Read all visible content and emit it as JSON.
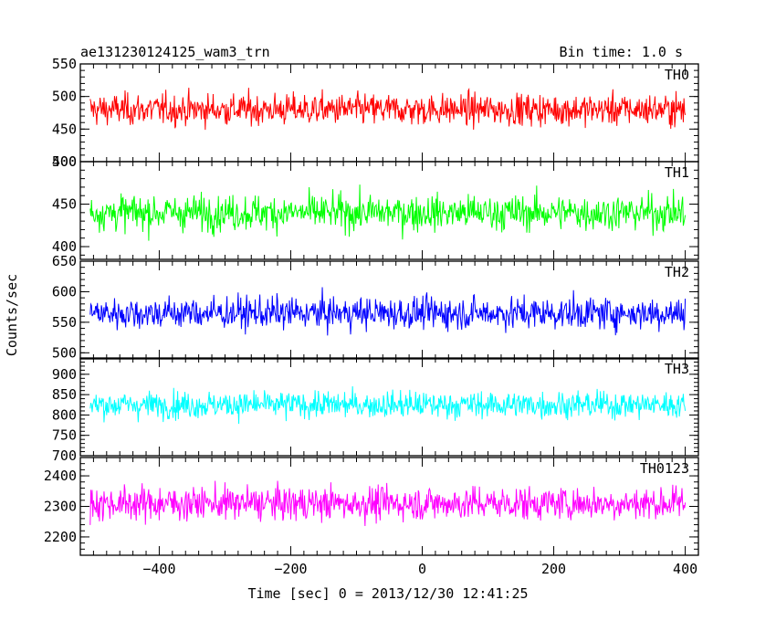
{
  "header": {
    "title": "ae131230124125_wam3_trn",
    "bin_time": "Bin time: 1.0 s"
  },
  "axes": {
    "xlabel": "Time [sec] 0 = 2013/12/30 12:41:25",
    "ylabel": "Counts/sec",
    "xlim": [
      -520,
      420
    ],
    "xticks": [
      -400,
      -200,
      0,
      200,
      400
    ],
    "xtick_labels": [
      "−400",
      "−200",
      "0",
      "200",
      "400"
    ]
  },
  "chart_data": [
    {
      "type": "line",
      "name": "TH0",
      "color": "#ff0000",
      "x_range": [
        -505,
        400
      ],
      "ylim": [
        400,
        550
      ],
      "yticks": [
        400,
        450,
        500,
        550
      ],
      "ytick_labels": [
        "400",
        "450",
        "500",
        "550"
      ],
      "mean": 480,
      "spread": 22,
      "display_min": 410,
      "display_max": 550
    },
    {
      "type": "line",
      "name": "TH1",
      "color": "#00ff00",
      "x_range": [
        -505,
        400
      ],
      "ylim": [
        385,
        500
      ],
      "yticks": [
        400,
        450,
        500
      ],
      "ytick_labels": [
        "400",
        "450",
        "500"
      ],
      "mean": 440,
      "spread": 19,
      "display_min": 387,
      "display_max": 497
    },
    {
      "type": "line",
      "name": "TH2",
      "color": "#0000ff",
      "x_range": [
        -505,
        400
      ],
      "ylim": [
        490,
        650
      ],
      "yticks": [
        500,
        550,
        600,
        650
      ],
      "ytick_labels": [
        "500",
        "550",
        "600",
        "650"
      ],
      "mean": 565,
      "spread": 24,
      "display_min": 492,
      "display_max": 648
    },
    {
      "type": "line",
      "name": "TH3",
      "color": "#00ffff",
      "x_range": [
        -505,
        400
      ],
      "ylim": [
        700,
        940
      ],
      "yticks": [
        700,
        750,
        800,
        850,
        900
      ],
      "ytick_labels": [
        "700",
        "750",
        "800",
        "850",
        "900"
      ],
      "mean": 825,
      "spread": 30,
      "display_min": 730,
      "display_max": 925
    },
    {
      "type": "line",
      "name": "TH0123",
      "color": "#ff00ff",
      "x_range": [
        -505,
        400
      ],
      "ylim": [
        2140,
        2460
      ],
      "yticks": [
        2200,
        2300,
        2400
      ],
      "ytick_labels": [
        "2200",
        "2300",
        "2400"
      ],
      "mean": 2310,
      "spread": 50,
      "display_min": 2165,
      "display_max": 2460
    }
  ]
}
